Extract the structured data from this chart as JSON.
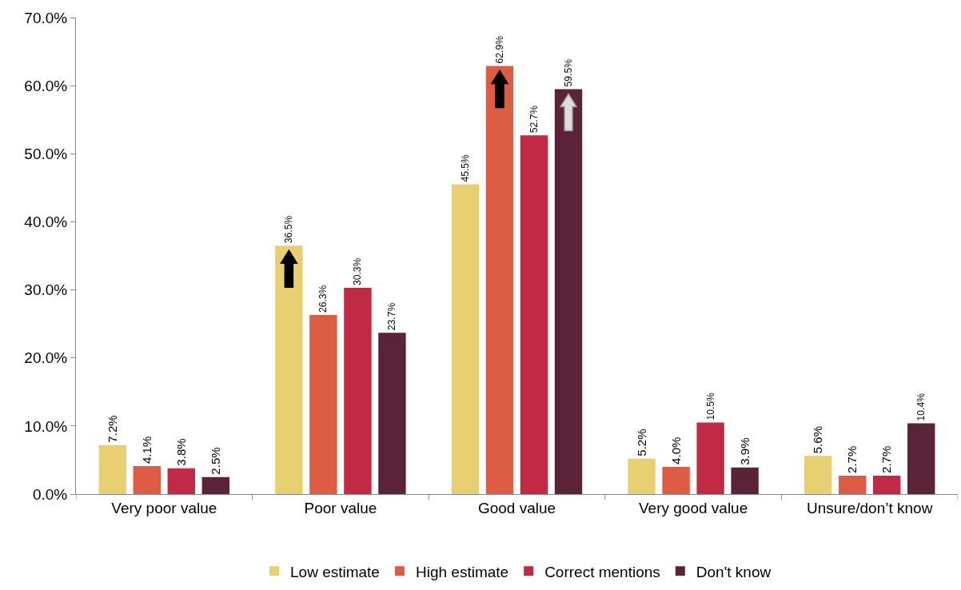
{
  "chart_data": {
    "type": "bar",
    "categories": [
      "Very poor value",
      "Poor value",
      "Good value",
      "Very good value",
      "Unsure/don’t know"
    ],
    "series": [
      {
        "name": "Low estimate",
        "color": "#e8cf72",
        "values": [
          7.2,
          36.5,
          45.5,
          5.2,
          5.6
        ],
        "value_labels": [
          "7.2%",
          "36.5%",
          "45.5%",
          "5.2%",
          "5.6%"
        ]
      },
      {
        "name": "High estimate",
        "color": "#dc5d44",
        "values": [
          4.1,
          26.3,
          62.9,
          4.0,
          2.7
        ],
        "value_labels": [
          "4.1%",
          "26.3%",
          "62.9%",
          "4.0%",
          "2.7%"
        ]
      },
      {
        "name": "Correct mentions",
        "color": "#c02a44",
        "values": [
          3.8,
          30.3,
          52.7,
          10.5,
          2.7
        ],
        "value_labels": [
          "3.8%",
          "30.3%",
          "52.7%",
          "10.5%",
          "2.7%"
        ]
      },
      {
        "name": "Don't know",
        "color": "#5b2337",
        "values": [
          2.5,
          23.7,
          59.5,
          3.9,
          10.4
        ],
        "value_labels": [
          "2.5%",
          "23.7%",
          "59.5%",
          "3.9%",
          "10.4%"
        ]
      }
    ],
    "ylim": [
      0,
      70
    ],
    "yticks": [
      {
        "value": 0,
        "label": "0.0%"
      },
      {
        "value": 10,
        "label": "10.0%"
      },
      {
        "value": 20,
        "label": "20.0%"
      },
      {
        "value": 30,
        "label": "30.0%"
      },
      {
        "value": 40,
        "label": "40.0%"
      },
      {
        "value": 50,
        "label": "50.0%"
      },
      {
        "value": 60,
        "label": "60.0%"
      },
      {
        "value": 70,
        "label": "70.0%"
      }
    ],
    "grid": false,
    "legend": "bottom"
  }
}
